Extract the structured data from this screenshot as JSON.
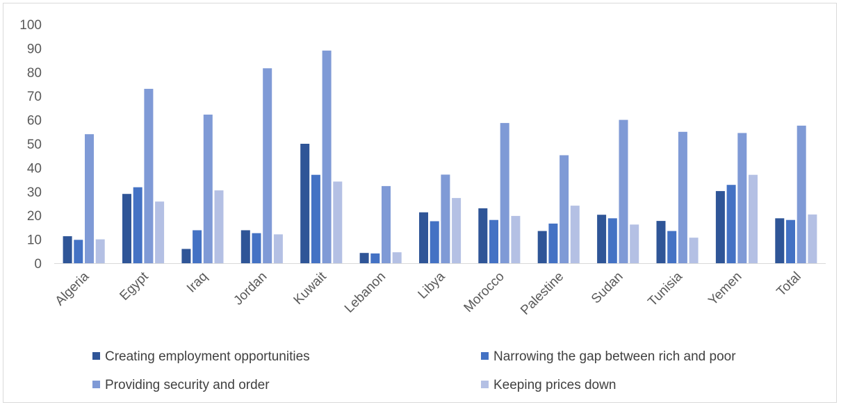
{
  "chart_data": {
    "type": "bar",
    "categories": [
      "Algeria",
      "Egypt",
      "Iraq",
      "Jordan",
      "Kuwait",
      "Lebanon",
      "Libya",
      "Morocco",
      "Palestine",
      "Sudan",
      "Tunisia",
      "Yemen",
      "Total"
    ],
    "series": [
      {
        "name": "Creating employment opportunities",
        "color": "#2f5597",
        "values": [
          11.3,
          29,
          6,
          13.8,
          50,
          4.3,
          21.3,
          23,
          13.5,
          20.3,
          17.7,
          30.2,
          18.8
        ]
      },
      {
        "name": "Narrowing the gap between rich and poor",
        "color": "#4472c4",
        "values": [
          9.8,
          31.8,
          13.8,
          12.6,
          37,
          4.1,
          17.6,
          18.1,
          16.6,
          18.8,
          13.5,
          32.8,
          18.1
        ]
      },
      {
        "name": "Providing security and order",
        "color": "#7f9ad6",
        "values": [
          54,
          73,
          62.2,
          81.6,
          89,
          32.3,
          37.1,
          58.7,
          45.2,
          60,
          55,
          54.5,
          57.6
        ]
      },
      {
        "name": "Keeping prices down",
        "color": "#b4c0e4",
        "values": [
          10,
          25.8,
          30.5,
          12.1,
          34.2,
          4.6,
          27.3,
          19.8,
          24.1,
          16.2,
          10.7,
          37,
          20.4
        ]
      }
    ],
    "yticks": [
      "0",
      "10",
      "20",
      "30",
      "40",
      "50",
      "60",
      "70",
      "80",
      "90",
      "100"
    ],
    "ylim": [
      0,
      100
    ],
    "title": "",
    "xlabel": "",
    "ylabel": "",
    "grid": false,
    "legend_position": "bottom"
  }
}
